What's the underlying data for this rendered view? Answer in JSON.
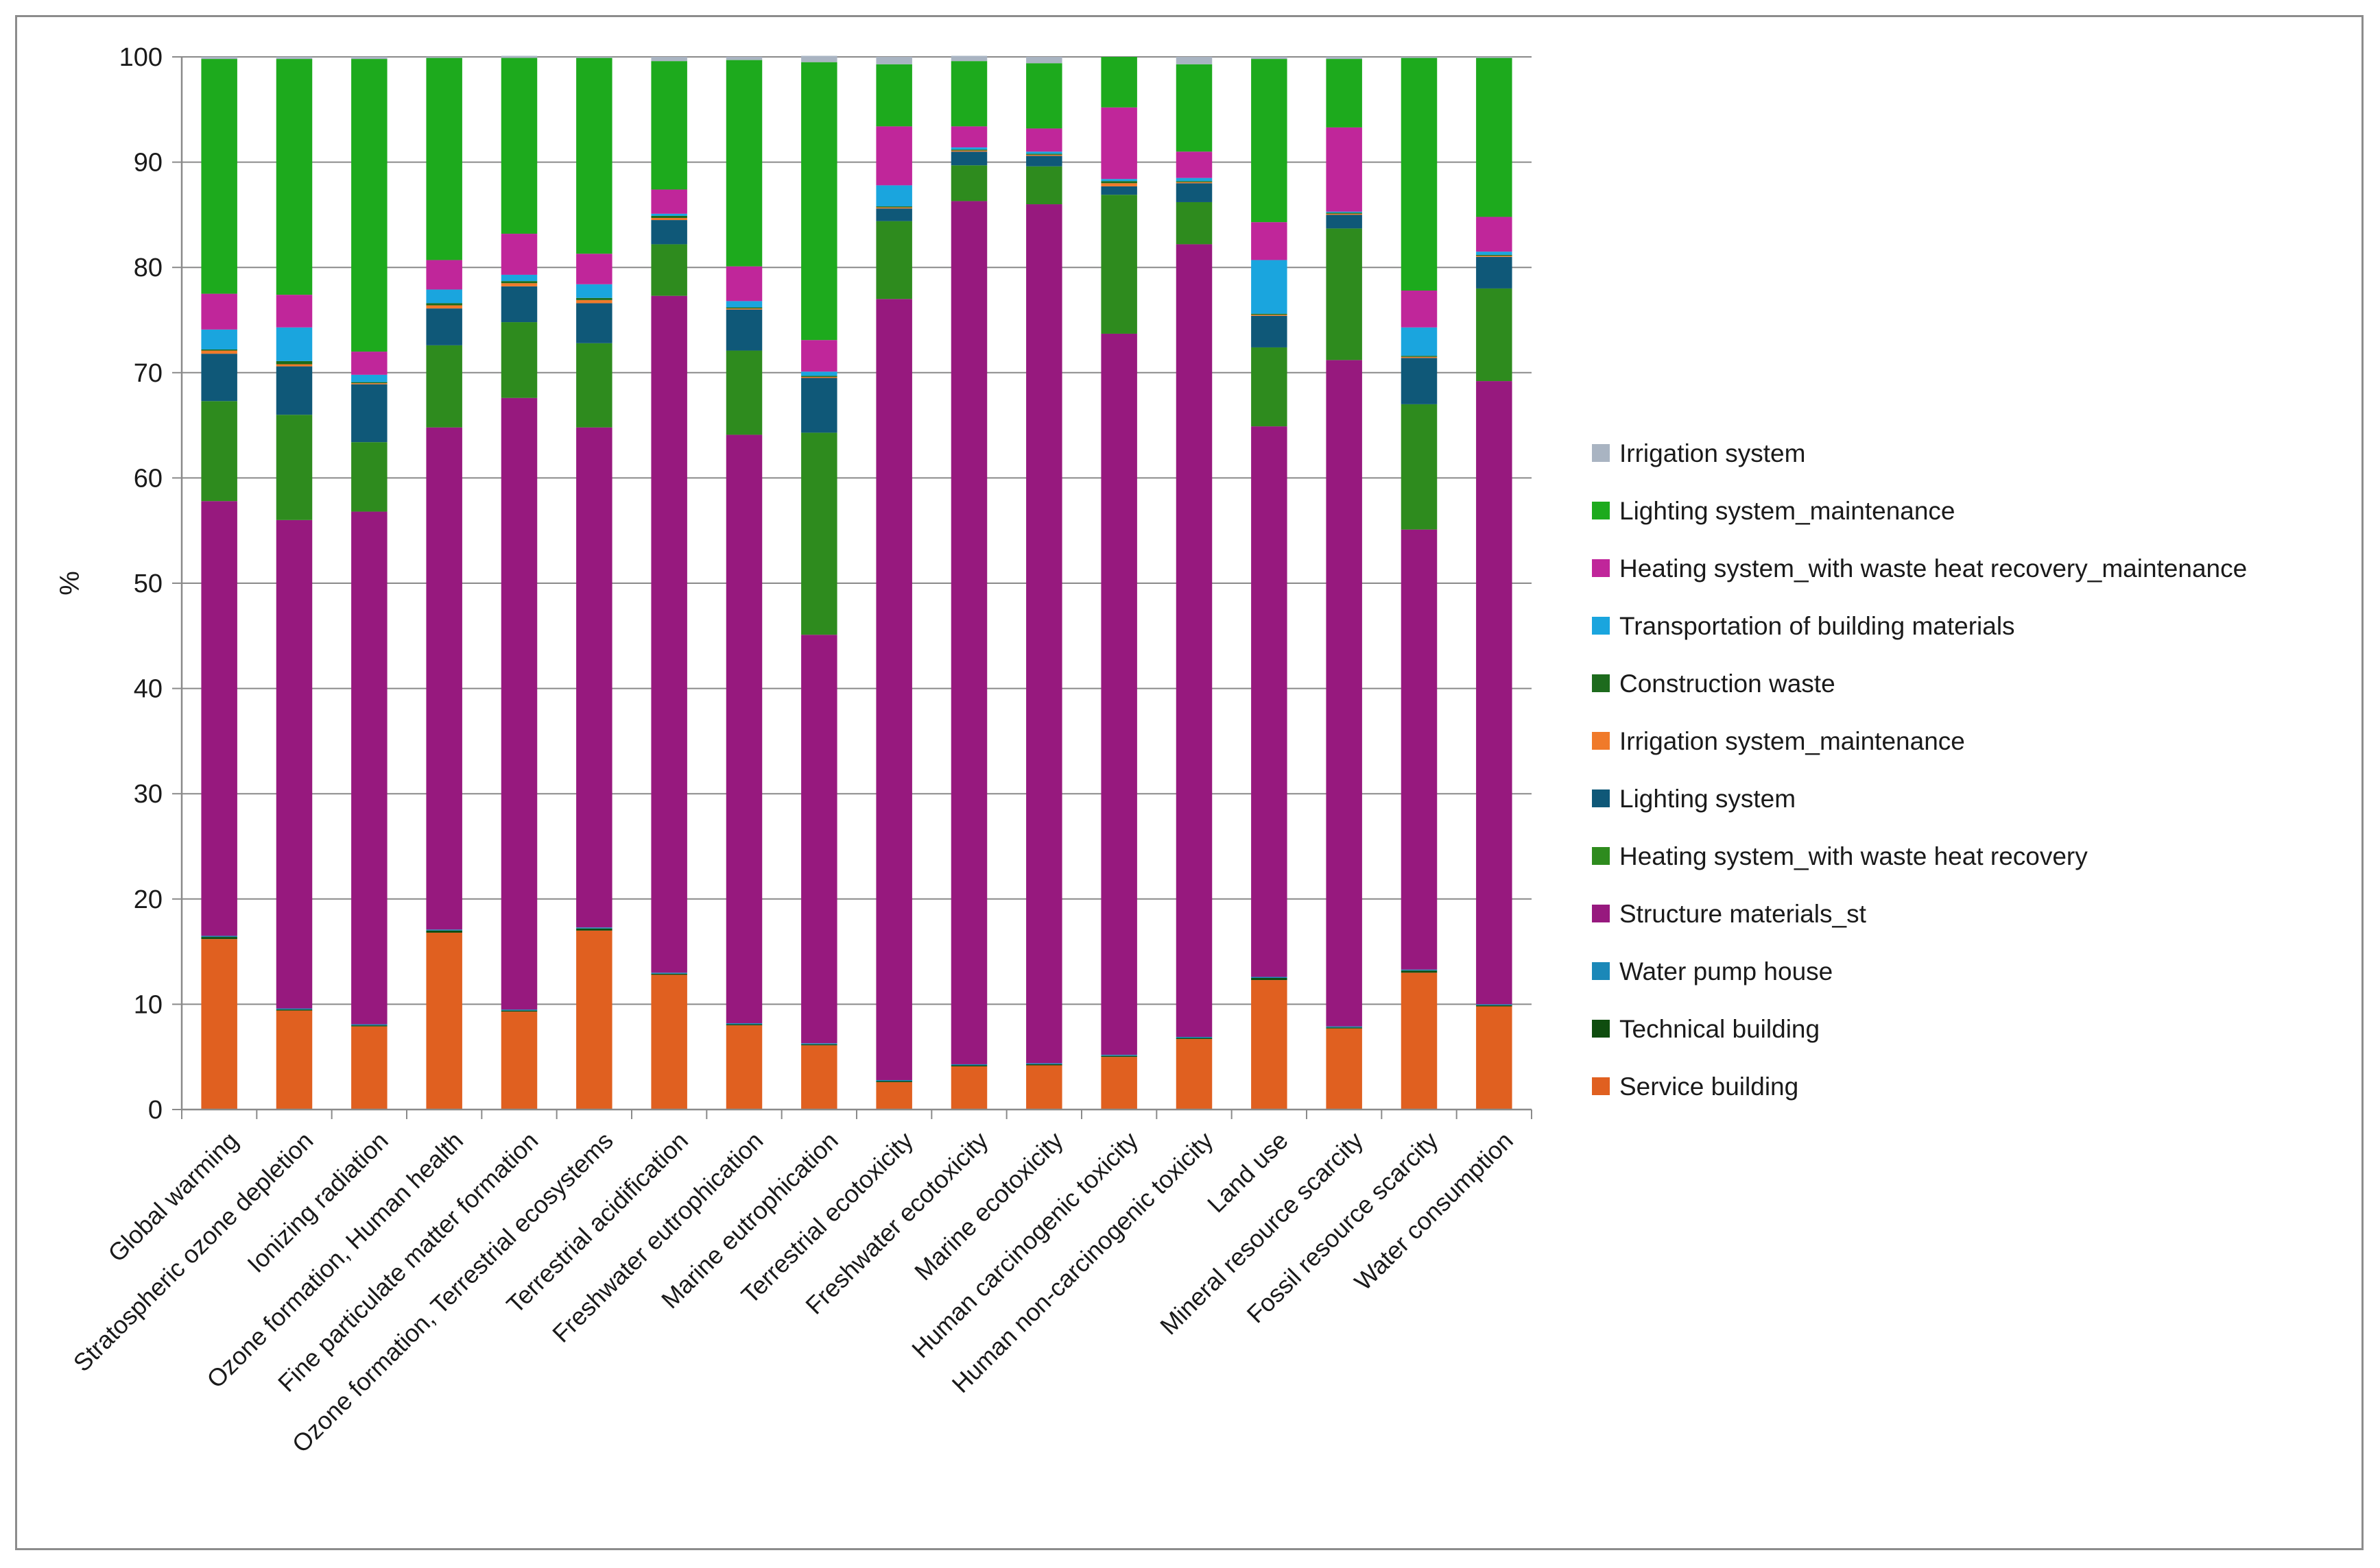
{
  "chart_data": {
    "type": "bar",
    "stacked": true,
    "title": "",
    "xlabel": "",
    "ylabel": "%",
    "ylim": [
      0,
      100
    ],
    "yticks": [
      0,
      10,
      20,
      30,
      40,
      50,
      60,
      70,
      80,
      90,
      100
    ],
    "grid": "horizontal",
    "legend_position": "right",
    "categories": [
      "Global warming",
      "Stratospheric ozone depletion",
      "Ionizing radiation",
      "Ozone formation, Human health",
      "Fine particulate matter formation",
      "Ozone formation, Terrestrial ecosystems",
      "Terrestrial acidification",
      "Freshwater eutrophication",
      "Marine eutrophication",
      "Terrestrial ecotoxicity",
      "Freshwater ecotoxicity",
      "Marine ecotoxicity",
      "Human carcinogenic toxicity",
      "Human non-carcinogenic toxicity",
      "Land use",
      "Mineral resource scarcity",
      "Fossil resource scarcity",
      "Water consumption"
    ],
    "series": [
      {
        "name": "Service building",
        "color": "#E06020",
        "values": [
          16.2,
          9.4,
          7.9,
          16.8,
          9.3,
          17.0,
          12.8,
          8.0,
          6.1,
          2.6,
          4.1,
          4.2,
          5.0,
          6.7,
          12.3,
          7.7,
          13.0,
          9.8
        ]
      },
      {
        "name": "Technical building",
        "color": "#0F4D0F",
        "values": [
          0.2,
          0.1,
          0.1,
          0.2,
          0.1,
          0.2,
          0.1,
          0.1,
          0.1,
          0.1,
          0.1,
          0.1,
          0.1,
          0.1,
          0.2,
          0.1,
          0.2,
          0.1
        ]
      },
      {
        "name": "Water pump house",
        "color": "#1B88B8",
        "values": [
          0.1,
          0.1,
          0.1,
          0.1,
          0.1,
          0.1,
          0.1,
          0.1,
          0.1,
          0.1,
          0.1,
          0.1,
          0.1,
          0.1,
          0.1,
          0.1,
          0.1,
          0.1
        ]
      },
      {
        "name": "Structure materials_st",
        "color": "#97197E",
        "values": [
          41.3,
          46.4,
          48.7,
          47.7,
          58.1,
          47.5,
          64.3,
          55.9,
          38.8,
          74.2,
          82.0,
          81.6,
          68.5,
          75.3,
          52.3,
          63.3,
          41.8,
          59.2
        ]
      },
      {
        "name": "Heating system_with waste heat recovery",
        "color": "#2E8B1E",
        "values": [
          9.5,
          10.0,
          6.6,
          7.8,
          7.2,
          8.0,
          4.9,
          8.0,
          19.2,
          7.4,
          3.4,
          3.6,
          13.2,
          4.0,
          7.5,
          12.5,
          11.9,
          8.8
        ]
      },
      {
        "name": "Lighting system",
        "color": "#0F5878",
        "values": [
          4.5,
          4.6,
          5.5,
          3.5,
          3.4,
          3.8,
          2.3,
          3.9,
          5.2,
          1.2,
          1.3,
          1.0,
          0.8,
          1.8,
          3.0,
          1.3,
          4.4,
          3.0
        ]
      },
      {
        "name": "Irrigation system_maintenance",
        "color": "#F07A2A",
        "values": [
          0.3,
          0.2,
          0.1,
          0.3,
          0.3,
          0.3,
          0.2,
          0.1,
          0.1,
          0.1,
          0.1,
          0.1,
          0.3,
          0.1,
          0.1,
          0.1,
          0.1,
          0.1
        ]
      },
      {
        "name": "Construction waste",
        "color": "#1D6B1D",
        "values": [
          0.1,
          0.3,
          0.1,
          0.2,
          0.2,
          0.2,
          0.2,
          0.1,
          0.1,
          0.1,
          0.1,
          0.1,
          0.2,
          0.1,
          0.1,
          0.1,
          0.1,
          0.1
        ]
      },
      {
        "name": "Transportation of building materials",
        "color": "#1AA5DE",
        "values": [
          1.9,
          3.2,
          0.7,
          1.3,
          0.6,
          1.3,
          0.2,
          0.6,
          0.4,
          2.0,
          0.2,
          0.2,
          0.2,
          0.3,
          5.1,
          0.1,
          2.7,
          0.3
        ]
      },
      {
        "name": "Heating system_with waste heat recovery_maintenance",
        "color": "#C0269A",
        "values": [
          3.4,
          3.1,
          2.2,
          2.8,
          3.9,
          2.9,
          2.3,
          3.3,
          3.0,
          5.6,
          2.0,
          2.2,
          6.8,
          2.5,
          3.6,
          8.0,
          3.5,
          3.3
        ]
      },
      {
        "name": "Lighting system_maintenance",
        "color": "#1DAA1D",
        "values": [
          22.3,
          22.4,
          27.8,
          19.2,
          16.7,
          18.6,
          12.2,
          19.6,
          26.4,
          5.9,
          6.2,
          6.2,
          4.8,
          8.3,
          15.5,
          6.5,
          22.1,
          15.1
        ]
      },
      {
        "name": "Irrigation system",
        "color": "#A9B4C2",
        "values": [
          0.2,
          0.2,
          0.2,
          0.1,
          0.2,
          0.1,
          0.4,
          0.3,
          0.6,
          0.7,
          0.5,
          0.6,
          0.0,
          0.7,
          0.2,
          0.2,
          0.1,
          0.1
        ]
      }
    ]
  }
}
